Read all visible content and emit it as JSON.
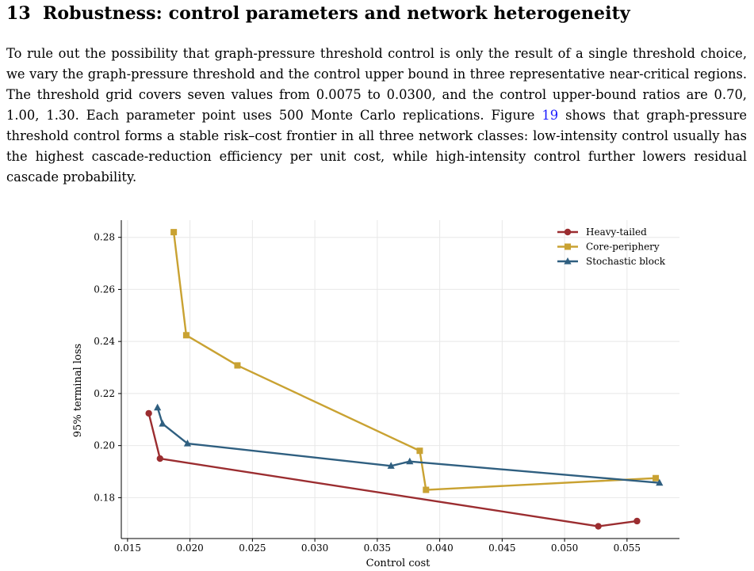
{
  "section": {
    "number": "13",
    "title": "Robustness: control parameters and network heterogeneity"
  },
  "paragraph": {
    "part1": "To rule out the possibility that graph-pressure threshold control is only the result of a single threshold choice, we vary the graph-pressure threshold and the control upper bound in three representative near-critical regions. The threshold grid covers seven values from 0.0075 to 0.0300, and the control upper-bound ratios are 0.70, 1.00, 1.30. Each parameter point uses 500 Monte Carlo replications.",
    "figure_ref_prefix": "Figure",
    "figure_ref_number": "19",
    "part2": "shows that graph-pressure threshold control forms a stable risk–cost frontier in all three network classes: low-intensity control usually has the highest cascade-reduction efficiency per unit cost, while high-intensity control further lowers residual cascade probability."
  },
  "chart_data": {
    "type": "line",
    "xlabel": "Control cost",
    "ylabel": "95% terminal loss",
    "xlim": [
      0.0145,
      0.0592
    ],
    "ylim": [
      0.1643,
      0.2866
    ],
    "xticks": [
      "0.015",
      "0.020",
      "0.025",
      "0.030",
      "0.035",
      "0.040",
      "0.045",
      "0.050",
      "0.055"
    ],
    "yticks": [
      "0.18",
      "0.20",
      "0.22",
      "0.24",
      "0.26",
      "0.28"
    ],
    "grid": true,
    "legend_position": "top-right",
    "series": [
      {
        "name": "Heavy-tailed",
        "color": "#9b2d30",
        "marker": "circle",
        "x": [
          0.0167,
          0.0176,
          0.0527,
          0.0558
        ],
        "y": [
          0.2124,
          0.195,
          0.169,
          0.171
        ]
      },
      {
        "name": "Core-periphery",
        "color": "#c9a232",
        "marker": "square",
        "x": [
          0.0187,
          0.0197,
          0.0238,
          0.0384,
          0.0389,
          0.0573
        ],
        "y": [
          0.282,
          0.2424,
          0.2308,
          0.198,
          0.183,
          0.1875
        ]
      },
      {
        "name": "Stochastic block",
        "color": "#2f5f80",
        "marker": "triangle",
        "x": [
          0.0174,
          0.0178,
          0.0198,
          0.0361,
          0.0376,
          0.0576
        ],
        "y": [
          0.2146,
          0.2084,
          0.2008,
          0.1922,
          0.1939,
          0.1857
        ]
      }
    ]
  }
}
